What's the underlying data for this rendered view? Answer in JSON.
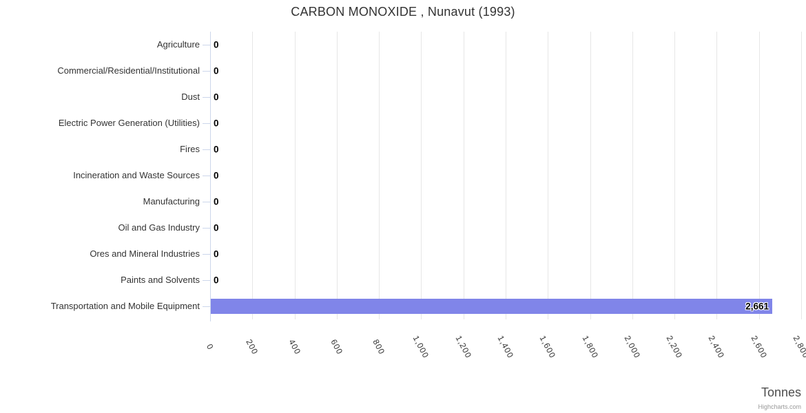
{
  "chart": {
    "title": "CARBON MONOXIDE , Nunavut (1993)",
    "axis_title": "Tonnes",
    "credit": "Highcharts.com"
  },
  "chart_data": {
    "type": "bar",
    "orientation": "horizontal",
    "title": "CARBON MONOXIDE , Nunavut (1993)",
    "categories": [
      "Agriculture",
      "Commercial/Residential/Institutional",
      "Dust",
      "Electric Power Generation (Utilities)",
      "Fires",
      "Incineration and Waste Sources",
      "Manufacturing",
      "Oil and Gas Industry",
      "Ores and Mineral Industries",
      "Paints and Solvents",
      "Transportation and Mobile Equipment"
    ],
    "values": [
      0,
      0,
      0,
      0,
      0,
      0,
      0,
      0,
      0,
      0,
      2661
    ],
    "value_labels": [
      "0",
      "0",
      "0",
      "0",
      "0",
      "0",
      "0",
      "0",
      "0",
      "0",
      "2,661"
    ],
    "xlabel": "Tonnes",
    "ylabel": "",
    "xlim": [
      0,
      2800
    ],
    "x_ticks": [
      0,
      200,
      400,
      600,
      800,
      1000,
      1200,
      1400,
      1600,
      1800,
      2000,
      2200,
      2400,
      2600,
      2800
    ],
    "x_tick_labels": [
      "0",
      "200",
      "400",
      "600",
      "800",
      "1,000",
      "1,200",
      "1,400",
      "1,600",
      "1,800",
      "2,000",
      "2,200",
      "2,400",
      "2,600",
      "2,800"
    ],
    "grid": true,
    "legend": false,
    "colors": {
      "bar": "#8085e9",
      "grid": "#e6e6e6",
      "axis": "#ccd6eb",
      "text": "#333333",
      "data_label": "#000000",
      "credit": "#999999"
    }
  }
}
